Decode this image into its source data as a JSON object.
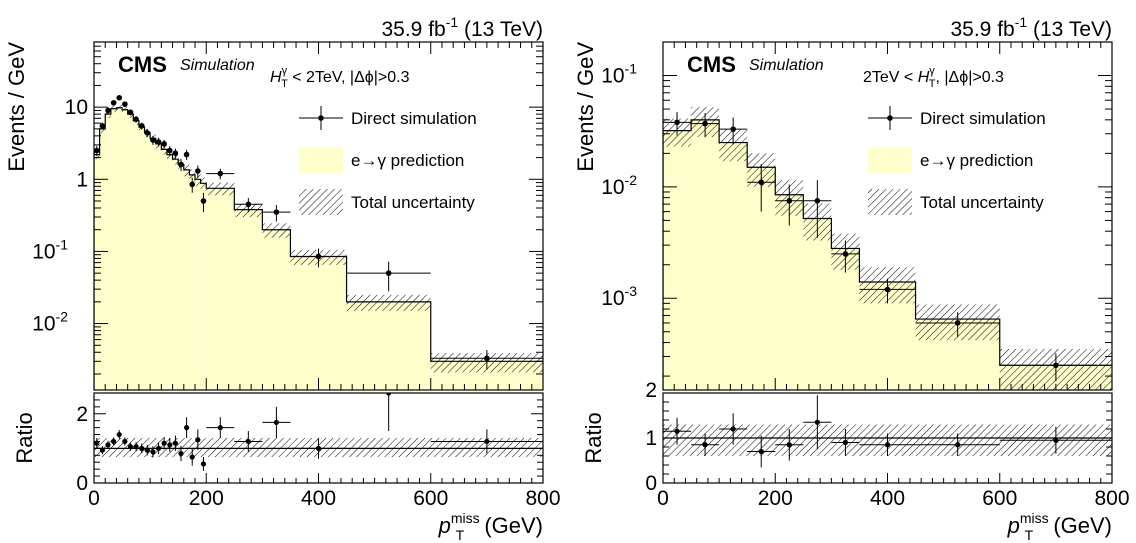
{
  "chart_data": [
    {
      "type": "histogram",
      "lumi_label": "35.9 fb",
      "lumi_sup": "-1",
      "energy_label": " (13 TeV)",
      "cms_label": "CMS",
      "sim_label": "Simulation",
      "cut_label": {
        "prefix": "H",
        "sup": "γ",
        "sub": "T",
        "suffix": " < 2TeV, |Δϕ|>0.3"
      },
      "ylabel": "Events / GeV",
      "ratio_ylabel": "Ratio",
      "xlabel": {
        "main": "p",
        "sup": "miss",
        "sub": "T",
        "unit": " (GeV)"
      },
      "x_range": [
        0,
        800
      ],
      "y_range": [
        0.0012,
        80
      ],
      "y_scale": "log",
      "ratio_range": [
        0,
        2.6
      ],
      "x_ticks": [
        0,
        200,
        400,
        600,
        800
      ],
      "y_ticks": [
        {
          "value": 0.01,
          "base": "10",
          "exp": "-2"
        },
        {
          "value": 0.1,
          "base": "10",
          "exp": "-1"
        },
        {
          "value": 1,
          "base": "1",
          "exp": ""
        },
        {
          "value": 10,
          "base": "10",
          "exp": ""
        }
      ],
      "ratio_ticks": [
        {
          "value": 0,
          "label": "0"
        },
        {
          "value": 2,
          "label": "2"
        }
      ],
      "legend": [
        {
          "type": "marker",
          "label": "Direct simulation"
        },
        {
          "type": "fill",
          "label": "e→γ prediction"
        },
        {
          "type": "hatch",
          "label": "Total uncertainty"
        }
      ],
      "prediction": [
        {
          "x0": 0,
          "x1": 10,
          "y": 2.2,
          "unc": 0.3
        },
        {
          "x0": 10,
          "x1": 20,
          "y": 5.0,
          "unc": 0.6
        },
        {
          "x0": 20,
          "x1": 30,
          "y": 8.0,
          "unc": 0.9
        },
        {
          "x0": 30,
          "x1": 40,
          "y": 9.5,
          "unc": 1.0
        },
        {
          "x0": 40,
          "x1": 50,
          "y": 9.8,
          "unc": 1.0
        },
        {
          "x0": 50,
          "x1": 60,
          "y": 9.2,
          "unc": 1.0
        },
        {
          "x0": 60,
          "x1": 70,
          "y": 8.0,
          "unc": 0.9
        },
        {
          "x0": 70,
          "x1": 80,
          "y": 6.5,
          "unc": 0.8
        },
        {
          "x0": 80,
          "x1": 90,
          "y": 5.3,
          "unc": 0.7
        },
        {
          "x0": 90,
          "x1": 100,
          "y": 4.4,
          "unc": 0.6
        },
        {
          "x0": 100,
          "x1": 110,
          "y": 3.7,
          "unc": 0.5
        },
        {
          "x0": 110,
          "x1": 120,
          "y": 3.1,
          "unc": 0.45
        },
        {
          "x0": 120,
          "x1": 130,
          "y": 2.6,
          "unc": 0.4
        },
        {
          "x0": 130,
          "x1": 140,
          "y": 2.2,
          "unc": 0.35
        },
        {
          "x0": 140,
          "x1": 150,
          "y": 1.9,
          "unc": 0.3
        },
        {
          "x0": 150,
          "x1": 160,
          "y": 1.6,
          "unc": 0.28
        },
        {
          "x0": 160,
          "x1": 170,
          "y": 1.35,
          "unc": 0.25
        },
        {
          "x0": 170,
          "x1": 180,
          "y": 1.15,
          "unc": 0.22
        },
        {
          "x0": 180,
          "x1": 190,
          "y": 1.0,
          "unc": 0.2
        },
        {
          "x0": 190,
          "x1": 200,
          "y": 0.88,
          "unc": 0.18
        },
        {
          "x0": 200,
          "x1": 250,
          "y": 0.75,
          "unc": 0.15
        },
        {
          "x0": 250,
          "x1": 300,
          "y": 0.38,
          "unc": 0.08
        },
        {
          "x0": 300,
          "x1": 350,
          "y": 0.2,
          "unc": 0.045
        },
        {
          "x0": 350,
          "x1": 450,
          "y": 0.085,
          "unc": 0.02
        },
        {
          "x0": 450,
          "x1": 600,
          "y": 0.02,
          "unc": 0.005
        },
        {
          "x0": 600,
          "x1": 800,
          "y": 0.003,
          "unc": 0.0009
        }
      ],
      "direct": [
        {
          "x": 5,
          "y": 2.5,
          "err": 0.4
        },
        {
          "x": 15,
          "y": 5.5,
          "err": 0.6
        },
        {
          "x": 25,
          "y": 9.0,
          "err": 0.8
        },
        {
          "x": 35,
          "y": 11.5,
          "err": 0.9
        },
        {
          "x": 45,
          "y": 13.5,
          "err": 1.0
        },
        {
          "x": 55,
          "y": 11.0,
          "err": 0.9
        },
        {
          "x": 65,
          "y": 8.5,
          "err": 0.8
        },
        {
          "x": 75,
          "y": 6.8,
          "err": 0.7
        },
        {
          "x": 85,
          "y": 5.5,
          "err": 0.6
        },
        {
          "x": 95,
          "y": 4.4,
          "err": 0.55
        },
        {
          "x": 105,
          "y": 3.5,
          "err": 0.5
        },
        {
          "x": 115,
          "y": 3.3,
          "err": 0.45
        },
        {
          "x": 125,
          "y": 3.1,
          "err": 0.42
        },
        {
          "x": 135,
          "y": 2.5,
          "err": 0.38
        },
        {
          "x": 145,
          "y": 2.3,
          "err": 0.36
        },
        {
          "x": 155,
          "y": 1.6,
          "err": 0.3
        },
        {
          "x": 165,
          "y": 2.2,
          "err": 0.35
        },
        {
          "x": 175,
          "y": 0.85,
          "err": 0.2
        },
        {
          "x": 185,
          "y": 1.3,
          "err": 0.25
        },
        {
          "x": 195,
          "y": 0.5,
          "err": 0.15
        },
        {
          "x": 225,
          "y": 1.2,
          "err": 0.2,
          "xerr": 25
        },
        {
          "x": 275,
          "y": 0.45,
          "err": 0.1,
          "xerr": 25
        },
        {
          "x": 325,
          "y": 0.35,
          "err": 0.09,
          "xerr": 25
        },
        {
          "x": 400,
          "y": 0.085,
          "err": 0.025,
          "xerr": 50
        },
        {
          "x": 525,
          "y": 0.05,
          "err": 0.022,
          "xerr": 75
        },
        {
          "x": 700,
          "y": 0.0033,
          "err": 0.001,
          "xerr": 100
        }
      ],
      "ratio": [
        {
          "x": 5,
          "y": 1.15,
          "err": 0.15
        },
        {
          "x": 15,
          "y": 0.95,
          "err": 0.12
        },
        {
          "x": 25,
          "y": 1.1,
          "err": 0.12
        },
        {
          "x": 35,
          "y": 1.2,
          "err": 0.12
        },
        {
          "x": 45,
          "y": 1.4,
          "err": 0.13
        },
        {
          "x": 55,
          "y": 1.2,
          "err": 0.12
        },
        {
          "x": 65,
          "y": 1.05,
          "err": 0.12
        },
        {
          "x": 75,
          "y": 1.05,
          "err": 0.13
        },
        {
          "x": 85,
          "y": 1.0,
          "err": 0.14
        },
        {
          "x": 95,
          "y": 0.95,
          "err": 0.15
        },
        {
          "x": 105,
          "y": 0.9,
          "err": 0.16
        },
        {
          "x": 115,
          "y": 1.0,
          "err": 0.17
        },
        {
          "x": 125,
          "y": 1.15,
          "err": 0.18
        },
        {
          "x": 135,
          "y": 1.1,
          "err": 0.2
        },
        {
          "x": 145,
          "y": 1.15,
          "err": 0.22
        },
        {
          "x": 155,
          "y": 0.85,
          "err": 0.22
        },
        {
          "x": 165,
          "y": 1.6,
          "err": 0.3
        },
        {
          "x": 175,
          "y": 0.75,
          "err": 0.25
        },
        {
          "x": 185,
          "y": 1.25,
          "err": 0.3
        },
        {
          "x": 195,
          "y": 0.55,
          "err": 0.2
        },
        {
          "x": 225,
          "y": 1.6,
          "err": 0.3,
          "xerr": 25
        },
        {
          "x": 275,
          "y": 1.2,
          "err": 0.3,
          "xerr": 25
        },
        {
          "x": 325,
          "y": 1.75,
          "err": 0.45,
          "xerr": 25
        },
        {
          "x": 400,
          "y": 1.0,
          "err": 0.3,
          "xerr": 50
        },
        {
          "x": 525,
          "y": 2.6,
          "err": 1.1,
          "xerr": 75
        },
        {
          "x": 700,
          "y": 1.2,
          "err": 0.35,
          "xerr": 100
        }
      ],
      "ratio_band": [
        {
          "x0": 0,
          "x1": 800,
          "lo": 0.75,
          "hi": 1.3
        }
      ]
    },
    {
      "type": "histogram",
      "lumi_label": "35.9 fb",
      "lumi_sup": "-1",
      "energy_label": " (13 TeV)",
      "cms_label": "CMS",
      "sim_label": "Simulation",
      "cut_label": {
        "prefix": "2TeV < H",
        "sup": "γ",
        "sub": "T",
        "suffix": ", |Δϕ|>0.3"
      },
      "ylabel": "Events / GeV",
      "ratio_ylabel": "Ratio",
      "xlabel": {
        "main": "p",
        "sup": "miss",
        "sub": "T",
        "unit": " (GeV)"
      },
      "x_range": [
        0,
        800
      ],
      "y_range": [
        0.00015,
        0.2
      ],
      "y_scale": "log",
      "ratio_range": [
        0,
        2.0
      ],
      "x_ticks": [
        0,
        200,
        400,
        600,
        800
      ],
      "y_ticks": [
        {
          "value": 0.001,
          "base": "10",
          "exp": "-3"
        },
        {
          "value": 0.01,
          "base": "10",
          "exp": "-2"
        },
        {
          "value": 0.1,
          "base": "10",
          "exp": "-1"
        }
      ],
      "y_extra_label": "2",
      "ratio_ticks": [
        {
          "value": 0,
          "label": "0"
        },
        {
          "value": 1,
          "label": "1"
        }
      ],
      "legend": [
        {
          "type": "marker",
          "label": "Direct simulation"
        },
        {
          "type": "fill",
          "label": "e→γ prediction"
        },
        {
          "type": "hatch",
          "label": "Total uncertainty"
        }
      ],
      "prediction": [
        {
          "x0": 0,
          "x1": 50,
          "y": 0.032,
          "unc": 0.009
        },
        {
          "x0": 50,
          "x1": 100,
          "y": 0.04,
          "unc": 0.012
        },
        {
          "x0": 100,
          "x1": 150,
          "y": 0.025,
          "unc": 0.008
        },
        {
          "x0": 150,
          "x1": 200,
          "y": 0.015,
          "unc": 0.005
        },
        {
          "x0": 200,
          "x1": 250,
          "y": 0.0085,
          "unc": 0.003
        },
        {
          "x0": 250,
          "x1": 300,
          "y": 0.0052,
          "unc": 0.0019
        },
        {
          "x0": 300,
          "x1": 350,
          "y": 0.0028,
          "unc": 0.001
        },
        {
          "x0": 350,
          "x1": 450,
          "y": 0.0014,
          "unc": 0.0005
        },
        {
          "x0": 450,
          "x1": 600,
          "y": 0.00065,
          "unc": 0.00023
        },
        {
          "x0": 600,
          "x1": 800,
          "y": 0.00025,
          "unc": 0.0001
        }
      ],
      "direct": [
        {
          "x": 25,
          "y": 0.038,
          "err": 0.009,
          "xerr": 25
        },
        {
          "x": 75,
          "y": 0.037,
          "err": 0.009,
          "xerr": 25
        },
        {
          "x": 125,
          "y": 0.033,
          "err": 0.009,
          "xerr": 25
        },
        {
          "x": 175,
          "y": 0.011,
          "err": 0.005,
          "xerr": 25
        },
        {
          "x": 225,
          "y": 0.0075,
          "err": 0.003,
          "xerr": 25
        },
        {
          "x": 275,
          "y": 0.0075,
          "err": 0.004,
          "xerr": 25
        },
        {
          "x": 325,
          "y": 0.0025,
          "err": 0.0008,
          "xerr": 25
        },
        {
          "x": 400,
          "y": 0.0012,
          "err": 0.0003,
          "xerr": 50
        },
        {
          "x": 525,
          "y": 0.0006,
          "err": 0.00015,
          "xerr": 75
        },
        {
          "x": 700,
          "y": 0.00025,
          "err": 7e-05,
          "xerr": 100
        }
      ],
      "ratio": [
        {
          "x": 25,
          "y": 1.15,
          "err": 0.3,
          "xerr": 25
        },
        {
          "x": 75,
          "y": 0.85,
          "err": 0.25,
          "xerr": 25
        },
        {
          "x": 125,
          "y": 1.2,
          "err": 0.35,
          "xerr": 25
        },
        {
          "x": 175,
          "y": 0.7,
          "err": 0.35,
          "xerr": 25
        },
        {
          "x": 225,
          "y": 0.85,
          "err": 0.35,
          "xerr": 25
        },
        {
          "x": 275,
          "y": 1.35,
          "err": 0.6,
          "xerr": 25
        },
        {
          "x": 325,
          "y": 0.9,
          "err": 0.3,
          "xerr": 25
        },
        {
          "x": 400,
          "y": 0.85,
          "err": 0.25,
          "xerr": 50
        },
        {
          "x": 525,
          "y": 0.85,
          "err": 0.25,
          "xerr": 75
        },
        {
          "x": 700,
          "y": 0.95,
          "err": 0.3,
          "xerr": 100
        }
      ],
      "ratio_band": [
        {
          "x0": 0,
          "x1": 800,
          "lo": 0.6,
          "hi": 1.3
        }
      ]
    }
  ]
}
